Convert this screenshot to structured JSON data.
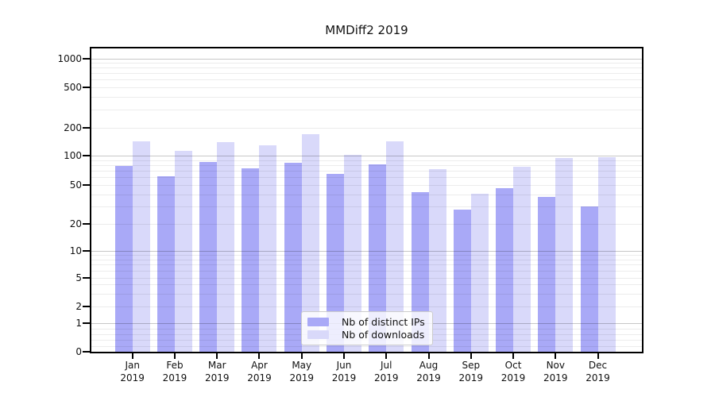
{
  "chart_data": {
    "type": "bar",
    "title": "MMDiff2 2019",
    "categories": [
      "Jan 2019",
      "Feb 2019",
      "Mar 2019",
      "Apr 2019",
      "May 2019",
      "Jun 2019",
      "Jul 2019",
      "Aug 2019",
      "Sep 2019",
      "Oct 2019",
      "Nov 2019",
      "Dec 2019"
    ],
    "series": [
      {
        "name": "Nb of distinct IPs",
        "color": "#a9a9f7",
        "values": [
          78,
          61,
          86,
          74,
          85,
          65,
          81,
          42,
          28,
          46,
          38,
          30
        ]
      },
      {
        "name": "Nb of downloads",
        "color": "#d9d9fa",
        "values": [
          143,
          113,
          141,
          129,
          170,
          102,
          143,
          73,
          41,
          77,
          95,
          97
        ]
      }
    ],
    "xlabel": "",
    "ylabel": "",
    "yscale": "symlog",
    "yticks": [
      0,
      1,
      2,
      5,
      10,
      20,
      50,
      100,
      200,
      500,
      1000
    ],
    "ylim": [
      0,
      1300
    ],
    "grid": true,
    "grid_major_lines": [
      1,
      10,
      100,
      1000
    ],
    "legend_position": "lower-center",
    "bar_group_mode": "grouped-pairs"
  }
}
